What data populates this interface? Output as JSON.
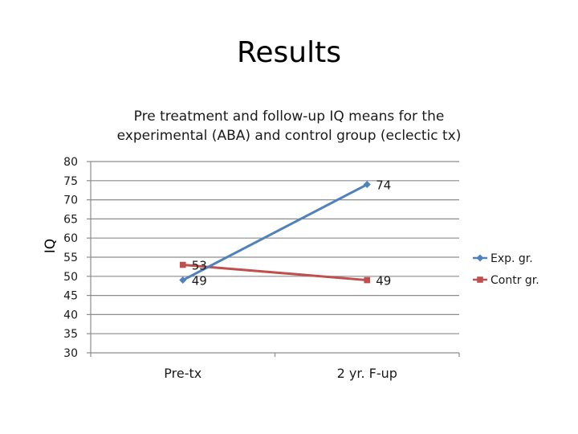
{
  "slide": {
    "title": "Results"
  },
  "chart_data": {
    "type": "line",
    "title_lines": [
      "Pre treatment and follow-up IQ means for the",
      "experimental (ABA) and control group (eclectic tx)"
    ],
    "xlabel": "",
    "ylabel": "IQ",
    "categories": [
      "Pre-tx",
      "2 yr. F-up"
    ],
    "ylim": [
      30,
      80
    ],
    "yticks": [
      "80",
      "75",
      "70",
      "65",
      "60",
      "55",
      "50",
      "45",
      "40",
      "35",
      "30"
    ],
    "grid": true,
    "legend_position": "right",
    "series": [
      {
        "name": "Exp. gr.",
        "values": [
          49,
          74
        ],
        "labels": [
          "49",
          "74"
        ],
        "color": "#4f81bd",
        "marker": "diamond"
      },
      {
        "name": "Contr gr.",
        "values": [
          53,
          49
        ],
        "labels": [
          "53",
          "49"
        ],
        "color": "#c0504d",
        "marker": "square"
      }
    ]
  }
}
